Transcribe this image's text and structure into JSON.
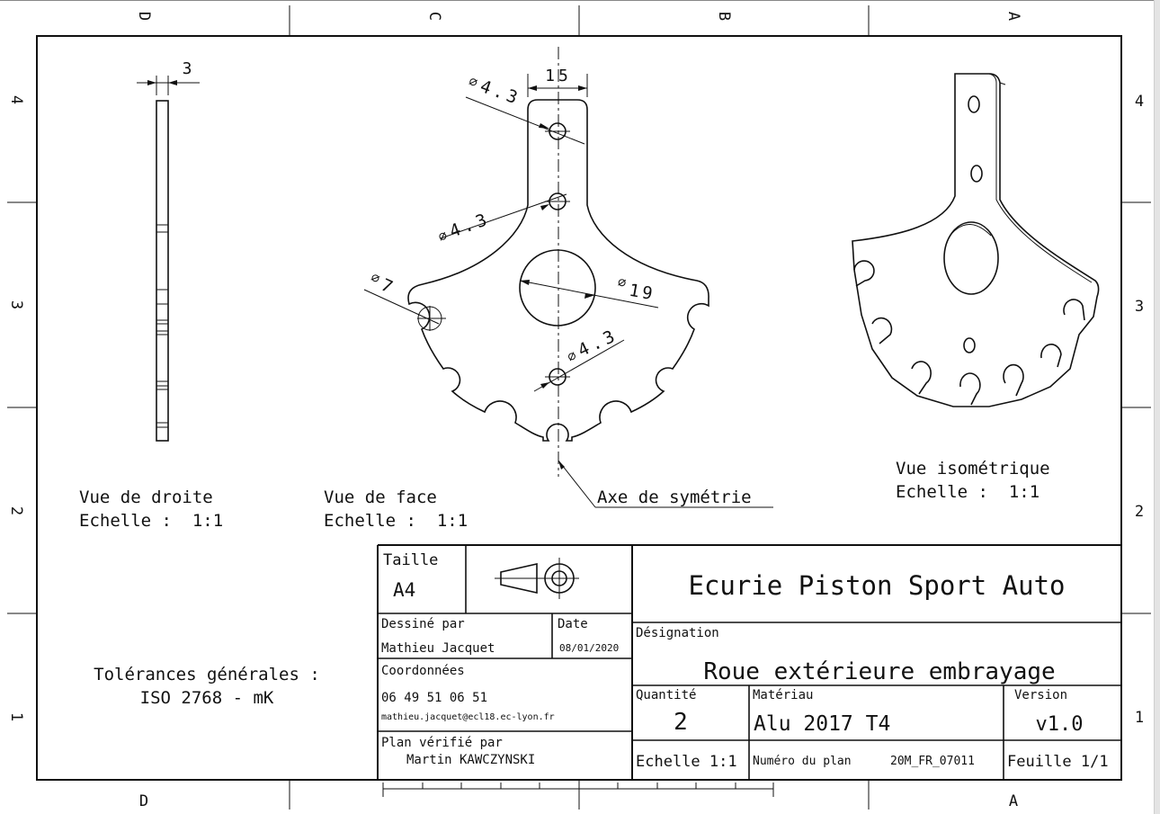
{
  "frame": {
    "columns_top": [
      "D",
      "C",
      "B",
      "A"
    ],
    "columns_bottom": [
      "D",
      "A"
    ],
    "rows_left": [
      "4",
      "3",
      "2",
      "1"
    ],
    "rows_right": [
      "4",
      "3",
      "2",
      "1"
    ]
  },
  "dimensions": {
    "thickness": "3",
    "width": "15",
    "hole_top": "4.3",
    "hole_mid": "4.3",
    "slot": "7",
    "center_bore": "19",
    "hole_low": "4.3"
  },
  "views": {
    "right": {
      "label": "Vue de droite",
      "scale": "Echelle :  1:1"
    },
    "front": {
      "label": "Vue de face",
      "scale": "Echelle :  1:1"
    },
    "iso": {
      "label": "Vue isométrique",
      "scale": "Echelle :  1:1"
    },
    "axis_note": "Axe de symétrie"
  },
  "tolerances": {
    "line1": "Tolérances générales :",
    "line2": "ISO 2768 - mK"
  },
  "title_block": {
    "size_label": "Taille",
    "size_value": "A4",
    "company": "Ecurie Piston Sport Auto",
    "drawn_by_label": "Dessiné par",
    "drawn_by": "Mathieu Jacquet",
    "date_label": "Date",
    "date": "08/01/2020",
    "contact_label": "Coordonnées",
    "phone": "06 49 51 06 51",
    "email": "mathieu.jacquet@ecl18.ec-lyon.fr",
    "checked_label": "Plan vérifié par",
    "checked_by": "Martin KAWCZYNSKI",
    "designation_label": "Désignation",
    "designation": "Roue extérieure embrayage",
    "quantity_label": "Quantité",
    "quantity": "2",
    "material_label": "Matériau",
    "material": "Alu 2017 T4",
    "version_label": "Version",
    "version": "v1.0",
    "scale": "Echelle 1:1",
    "plan_number_label": "Numéro du plan",
    "plan_number": "20M_FR_07011",
    "sheet": "Feuille 1/1"
  }
}
